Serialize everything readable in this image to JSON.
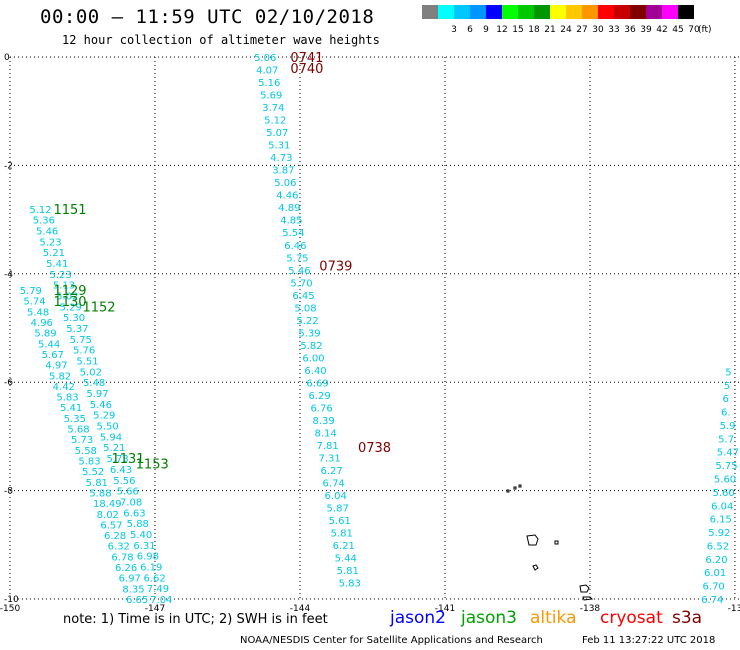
{
  "header": {
    "title": "00:00 – 11:59 UTC 02/10/2018",
    "subtitle": "12 hour collection of altimeter wave heights"
  },
  "legend": {
    "swatches": [
      {
        "label": "",
        "color": "#808080"
      },
      {
        "label": "3",
        "color": "#00ffff"
      },
      {
        "label": "6",
        "color": "#00c8ff"
      },
      {
        "label": "9",
        "color": "#0096ff"
      },
      {
        "label": "12",
        "color": "#0000ff"
      },
      {
        "label": "15",
        "color": "#00ff00"
      },
      {
        "label": "18",
        "color": "#00c800"
      },
      {
        "label": "21",
        "color": "#009600"
      },
      {
        "label": "24",
        "color": "#ffff00"
      },
      {
        "label": "27",
        "color": "#ffc800"
      },
      {
        "label": "30",
        "color": "#ff9600"
      },
      {
        "label": "33",
        "color": "#ff0000"
      },
      {
        "label": "36",
        "color": "#c80000"
      },
      {
        "label": "39",
        "color": "#800000"
      },
      {
        "label": "42",
        "color": "#a00096"
      },
      {
        "label": "45",
        "color": "#ff00ff"
      },
      {
        "label": "70",
        "color": "#000000"
      }
    ],
    "unit": "(ft)"
  },
  "map": {
    "lon_ticks": [
      {
        "label": "-150",
        "lon": -150
      },
      {
        "label": "-147",
        "lon": -147
      },
      {
        "label": "-144",
        "lon": -144
      },
      {
        "label": "-141",
        "lon": -141
      },
      {
        "label": "-138",
        "lon": -138
      },
      {
        "label": "-13",
        "lon": -135
      }
    ],
    "lat_ticks": [
      {
        "label": "0",
        "lat": 0
      },
      {
        "label": "-2",
        "lat": -2
      },
      {
        "label": "-4",
        "lat": -4
      },
      {
        "label": "-6",
        "lat": -6
      },
      {
        "label": "-8",
        "lat": -8
      },
      {
        "label": "-10",
        "lat": -10
      }
    ],
    "time_labels": [
      {
        "text": "0741",
        "lon": -144.2,
        "lat": 0.0,
        "color": "#800000"
      },
      {
        "text": "0740",
        "lon": -144.2,
        "lat": -0.2,
        "color": "#800000"
      },
      {
        "text": "0739",
        "lon": -143.6,
        "lat": -3.85,
        "color": "#800000"
      },
      {
        "text": "0738",
        "lon": -142.8,
        "lat": -7.2,
        "color": "#800000"
      },
      {
        "text": "1151",
        "lon": -149.1,
        "lat": -2.8,
        "color": "#008000"
      },
      {
        "text": "1129",
        "lon": -149.1,
        "lat": -4.3,
        "color": "#008000"
      },
      {
        "text": "1130",
        "lon": -149.1,
        "lat": -4.5,
        "color": "#008000"
      },
      {
        "text": "1152",
        "lon": -148.5,
        "lat": -4.6,
        "color": "#008000"
      },
      {
        "text": "1131",
        "lon": -147.9,
        "lat": -7.4,
        "color": "#008000"
      },
      {
        "text": "1153",
        "lon": -147.4,
        "lat": -7.5,
        "color": "#008000"
      }
    ],
    "tracks": [
      {
        "name": "track-a",
        "color": "#00c8e6",
        "start_lon": -144.95,
        "start_lat": 0.0,
        "end_lon": -143.2,
        "end_lat": -9.7,
        "values": [
          "5.06",
          "4.07",
          "5.16",
          "5.69",
          "3.74",
          "5.12",
          "5.07",
          "5.31",
          "4.73",
          "3.87",
          "5.06",
          "4.46",
          "4.89",
          "4.85",
          "5.54",
          "6.46",
          "5.75",
          "5.46",
          "5.70",
          "6.45",
          "5.08",
          "5.22",
          "5.39",
          "5.82",
          "6.00",
          "6.40",
          "6.69",
          "6.29",
          "6.76",
          "8.39",
          "8.14",
          "7.81",
          "7.31",
          "6.27",
          "6.74",
          "6.04",
          "5.87",
          "5.61",
          "5.81",
          "6.21",
          "5.44",
          "5.81",
          "5.83"
        ]
      },
      {
        "name": "track-b",
        "color": "#00c8e6",
        "start_lon": -149.6,
        "start_lat": -2.8,
        "end_lon": -147.1,
        "end_lat": -10.0,
        "values": [
          "5.12",
          "5.36",
          "5.46",
          "5.23",
          "5.21",
          "5.41",
          "5.23",
          "5.13",
          "5.02",
          "5.29",
          "5.30",
          "5.37",
          "5.75",
          "5.76",
          "5.51",
          "5.02",
          "5.48",
          "5.97",
          "5.46",
          "5.29",
          "5.50",
          "5.94",
          "5.21",
          "5.73",
          "6.43",
          "5.56",
          "5.66",
          "7.08",
          "6.63",
          "5.88",
          "5.40",
          "6.31",
          "6.98",
          "6.19",
          "6.62",
          "7.49",
          "7.04"
        ]
      },
      {
        "name": "track-c",
        "color": "#00c8e6",
        "start_lon": -149.8,
        "start_lat": -4.3,
        "end_lon": -147.6,
        "end_lat": -10.0,
        "values": [
          "5.79",
          "5.74",
          "5.48",
          "4.96",
          "5.89",
          "5.44",
          "5.67",
          "4.97",
          "5.82",
          "4.42",
          "5.83",
          "5.41",
          "5.35",
          "5.68",
          "5.73",
          "5.58",
          "5.83",
          "5.52",
          "5.81",
          "5.88",
          "18.49",
          "8.02",
          "6.57",
          "6.28",
          "6.32",
          "6.78",
          "6.26",
          "6.97",
          "8.35",
          "6.65"
        ]
      },
      {
        "name": "track-d",
        "color": "#00c8e6",
        "start_lon": -135.2,
        "start_lat": -5.8,
        "end_lon": -135.7,
        "end_lat": -10.0,
        "values": [
          "5",
          "5",
          "6",
          "6.",
          "5.9",
          "5.7",
          "5.47",
          "5.75",
          "5.60",
          "5.60",
          "6.04",
          "6.15",
          "5.92",
          "6.52",
          "6.20",
          "6.01",
          "6.70",
          "6.74"
        ]
      }
    ],
    "altika_value": {
      "text": "6",
      "lon": -134.9,
      "lat": -8.95,
      "color": "#ff9600"
    }
  },
  "footer": {
    "note": "note: 1) Time is in UTC; 2) SWH is in feet",
    "satellites": [
      {
        "name": "jason2",
        "color": "#0000ff"
      },
      {
        "name": "jason3",
        "color": "#00a000"
      },
      {
        "name": "altika",
        "color": "#ff9600"
      },
      {
        "name": "cryosat",
        "color": "#ff0000"
      },
      {
        "name": "s3a",
        "color": "#800000"
      }
    ],
    "credit": "NOAA/NESDIS Center for Satellite Applications and Research",
    "timestamp": "Feb 11 13:27:22 UTC 2018"
  }
}
